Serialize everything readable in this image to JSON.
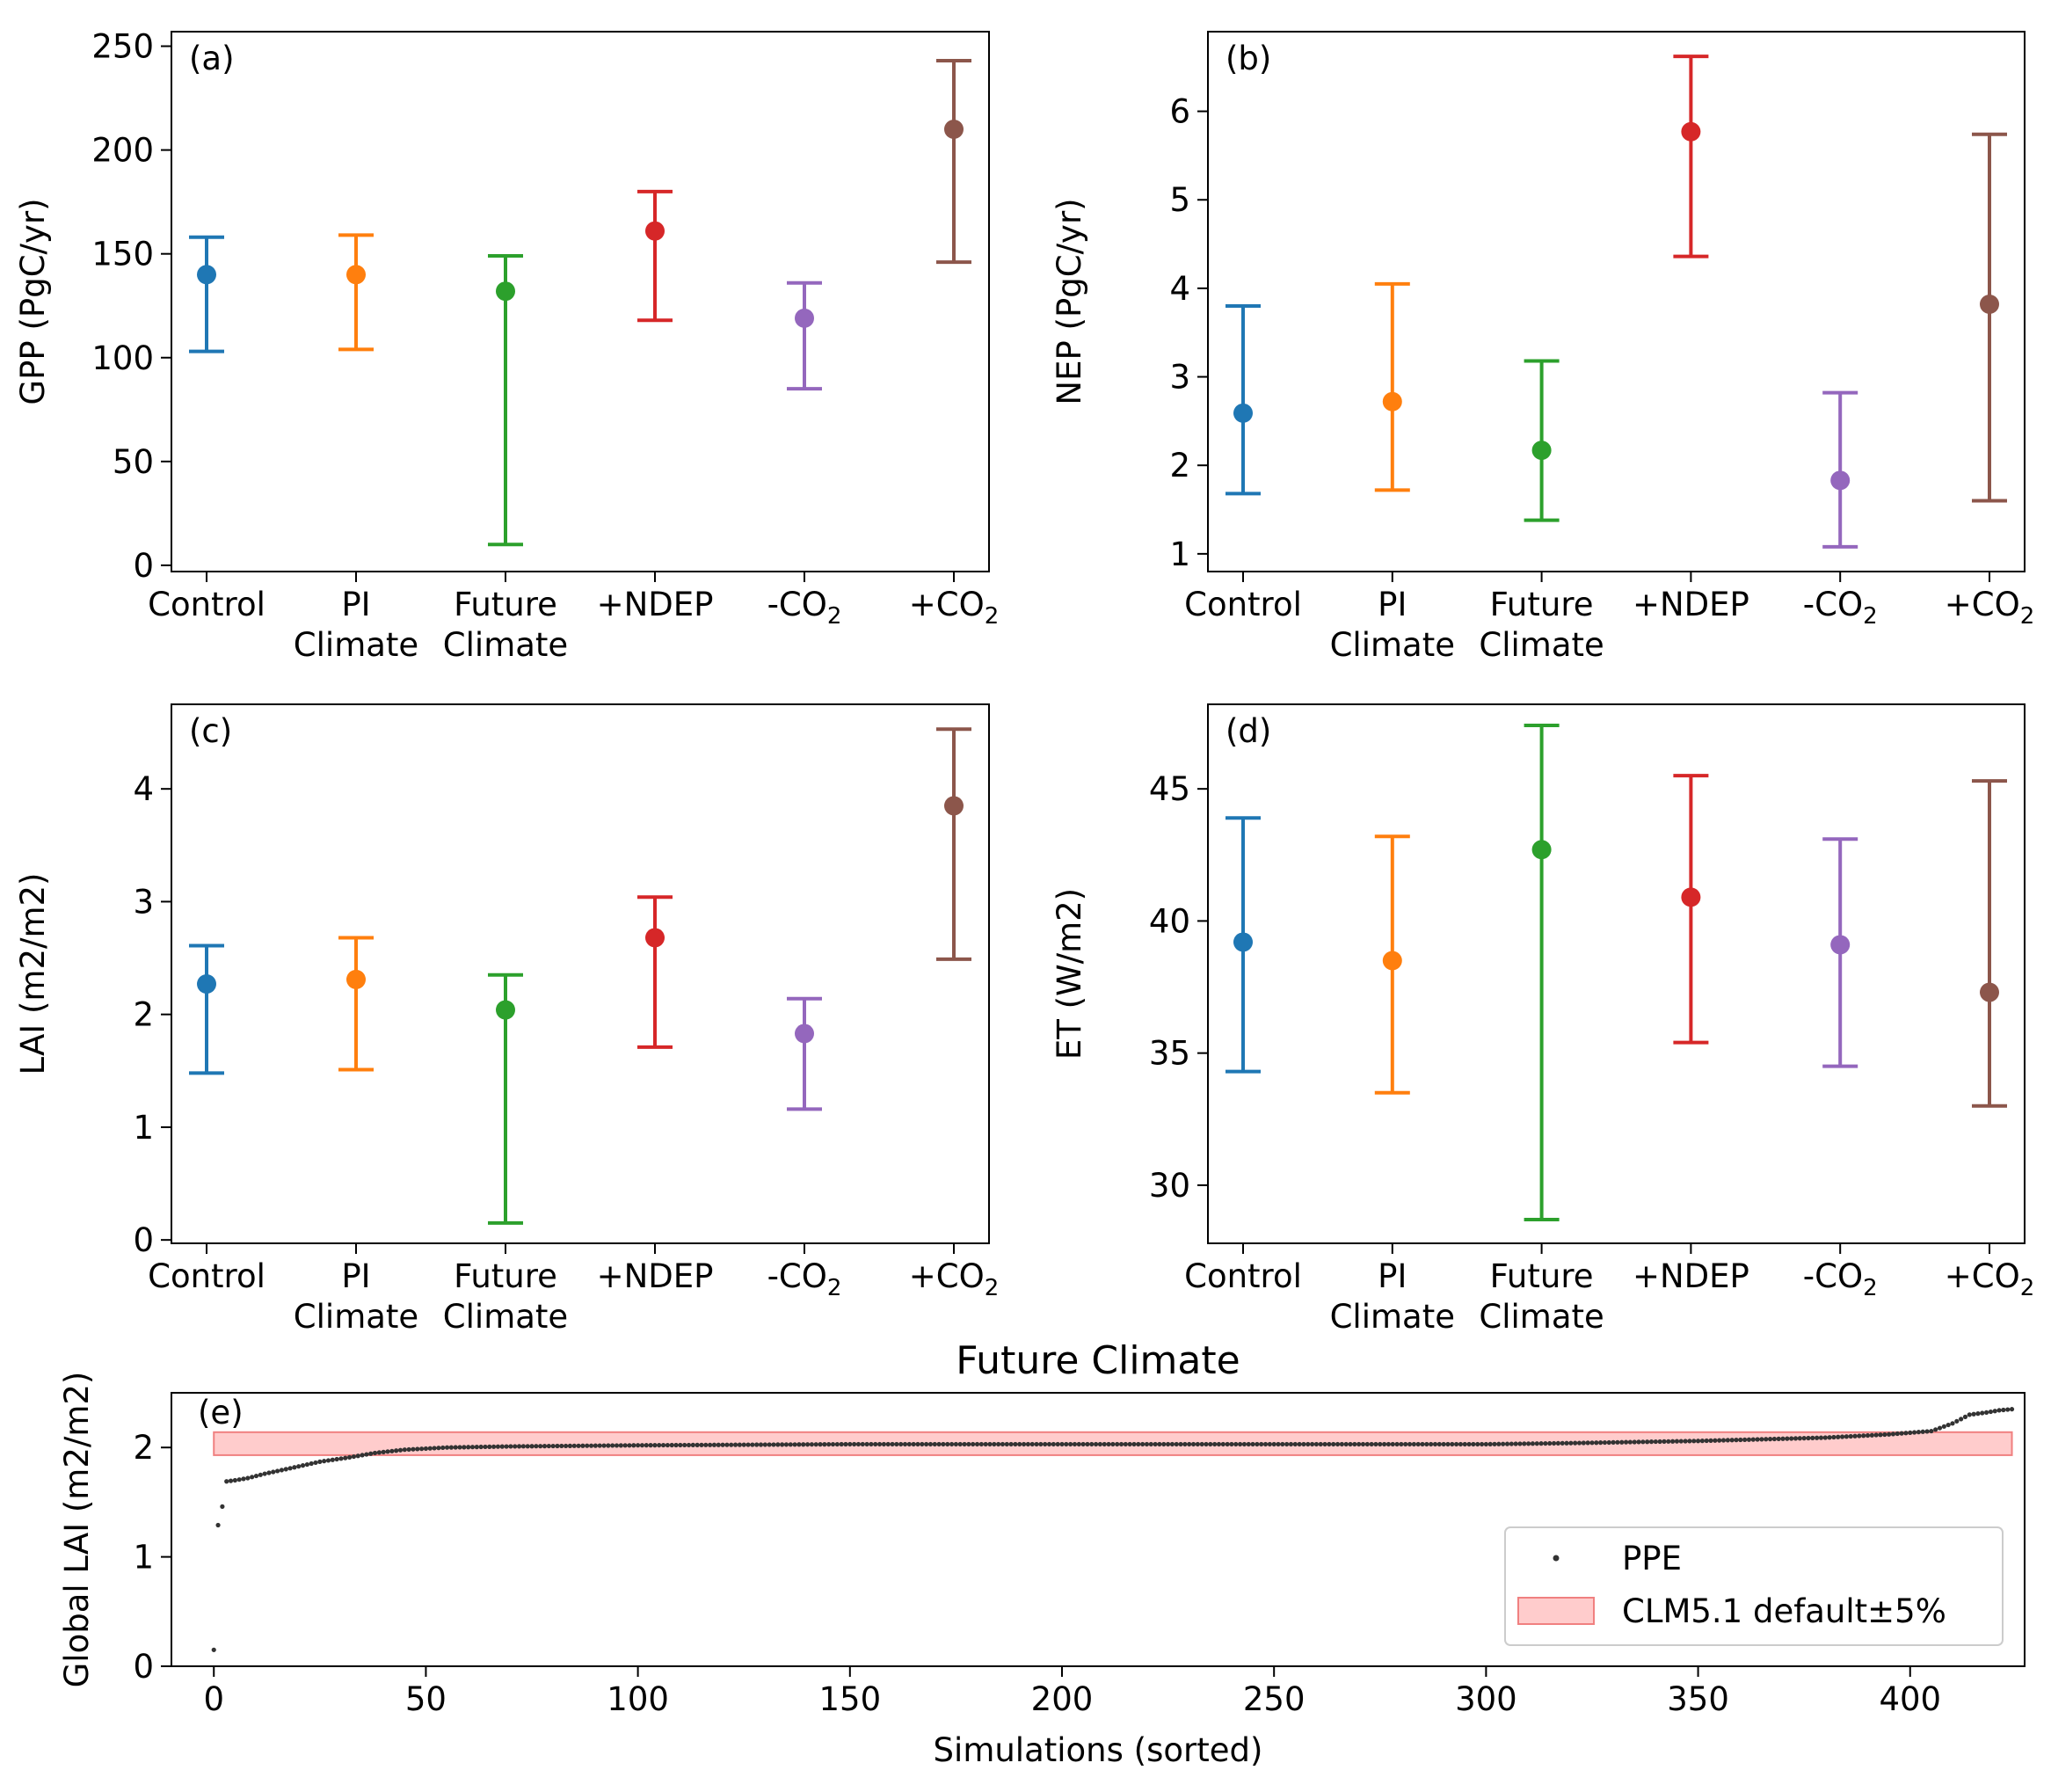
{
  "colors": {
    "Control": "#1f77b4",
    "PI Climate": "#ff7f0e",
    "Future Climate": "#2ca02c",
    "+NDEP": "#d62728",
    "-CO2": "#9467bd",
    "+CO2": "#8c564b",
    "ppe_marker": "#333333",
    "band_fill": "#ffcccc",
    "band_edge": "#f08080"
  },
  "chart_data": [
    {
      "type": "errorbar",
      "panel": "(a)",
      "ylabel": "GPP (PgC/yr)",
      "ylim": [
        -3,
        257
      ],
      "yticks": [
        0,
        50,
        100,
        150,
        200,
        250
      ],
      "categories": [
        {
          "line1": "Control",
          "line2": ""
        },
        {
          "line1": "PI",
          "line2": "Climate"
        },
        {
          "line1": "Future",
          "line2": "Climate"
        },
        {
          "line1": "+NDEP",
          "line2": ""
        },
        {
          "line1": "-CO",
          "sub": "2",
          "line2": ""
        },
        {
          "line1": "+CO",
          "sub": "2",
          "line2": ""
        }
      ],
      "mean": [
        140,
        140,
        132,
        161,
        119,
        210
      ],
      "low": [
        103,
        104,
        10,
        118,
        85,
        146
      ],
      "high": [
        158,
        159,
        149,
        180,
        136,
        243
      ]
    },
    {
      "type": "errorbar",
      "panel": "(b)",
      "ylabel": "NEP (PgC/yr)",
      "ylim": [
        0.8,
        6.9
      ],
      "yticks": [
        1,
        2,
        3,
        4,
        5,
        6
      ],
      "categories": [
        {
          "line1": "Control",
          "line2": ""
        },
        {
          "line1": "PI",
          "line2": "Climate"
        },
        {
          "line1": "Future",
          "line2": "Climate"
        },
        {
          "line1": "+NDEP",
          "line2": ""
        },
        {
          "line1": "-CO",
          "sub": "2",
          "line2": ""
        },
        {
          "line1": "+CO",
          "sub": "2",
          "line2": ""
        }
      ],
      "mean": [
        2.59,
        2.72,
        2.17,
        5.77,
        1.83,
        3.82
      ],
      "low": [
        1.68,
        1.72,
        1.38,
        4.36,
        1.08,
        1.6
      ],
      "high": [
        3.8,
        4.05,
        3.18,
        6.62,
        2.82,
        5.74
      ]
    },
    {
      "type": "errorbar",
      "panel": "(c)",
      "ylabel": "LAI (m2/m2)",
      "ylim": [
        -0.03,
        4.75
      ],
      "yticks": [
        0,
        1,
        2,
        3,
        4
      ],
      "categories": [
        {
          "line1": "Control",
          "line2": ""
        },
        {
          "line1": "PI",
          "line2": "Climate"
        },
        {
          "line1": "Future",
          "line2": "Climate"
        },
        {
          "line1": "+NDEP",
          "line2": ""
        },
        {
          "line1": "-CO",
          "sub": "2",
          "line2": ""
        },
        {
          "line1": "+CO",
          "sub": "2",
          "line2": ""
        }
      ],
      "mean": [
        2.27,
        2.31,
        2.04,
        2.68,
        1.83,
        3.85
      ],
      "low": [
        1.48,
        1.51,
        0.15,
        1.71,
        1.16,
        2.49
      ],
      "high": [
        2.61,
        2.68,
        2.35,
        3.04,
        2.14,
        4.53
      ]
    },
    {
      "type": "errorbar",
      "panel": "(d)",
      "ylabel": "ET (W/m2)",
      "ylim": [
        27.8,
        48.2
      ],
      "yticks": [
        30,
        35,
        40,
        45
      ],
      "categories": [
        {
          "line1": "Control",
          "line2": ""
        },
        {
          "line1": "PI",
          "line2": "Climate"
        },
        {
          "line1": "Future",
          "line2": "Climate"
        },
        {
          "line1": "+NDEP",
          "line2": ""
        },
        {
          "line1": "-CO",
          "sub": "2",
          "line2": ""
        },
        {
          "line1": "+CO",
          "sub": "2",
          "line2": ""
        }
      ],
      "mean": [
        39.2,
        38.5,
        42.7,
        40.9,
        39.1,
        37.3
      ],
      "low": [
        34.3,
        33.5,
        28.7,
        35.4,
        34.5,
        33.0
      ],
      "high": [
        43.9,
        43.2,
        47.4,
        45.5,
        43.1,
        45.3
      ]
    },
    {
      "type": "scatter",
      "panel": "(e)",
      "title": "Future Climate",
      "xlabel": "Simulations (sorted)",
      "ylabel": "Global LAI (m2/m2)",
      "xlim": [
        -10,
        427
      ],
      "ylim": [
        0,
        2.5
      ],
      "xticks": [
        0,
        50,
        100,
        150,
        200,
        250,
        300,
        350,
        400
      ],
      "yticks": [
        0,
        1,
        2
      ],
      "n_points": 425,
      "sorted_profile": [
        [
          0,
          0.15
        ],
        [
          1,
          1.29
        ],
        [
          2,
          1.46
        ],
        [
          3,
          1.69
        ],
        [
          5,
          1.7
        ],
        [
          8,
          1.72
        ],
        [
          12,
          1.76
        ],
        [
          18,
          1.81
        ],
        [
          25,
          1.87
        ],
        [
          32,
          1.91
        ],
        [
          38,
          1.95
        ],
        [
          45,
          1.98
        ],
        [
          55,
          2.0
        ],
        [
          70,
          2.01
        ],
        [
          100,
          2.02
        ],
        [
          150,
          2.03
        ],
        [
          200,
          2.03
        ],
        [
          250,
          2.03
        ],
        [
          300,
          2.03
        ],
        [
          320,
          2.04
        ],
        [
          350,
          2.06
        ],
        [
          380,
          2.09
        ],
        [
          395,
          2.12
        ],
        [
          405,
          2.15
        ],
        [
          410,
          2.22
        ],
        [
          414,
          2.3
        ],
        [
          418,
          2.32
        ],
        [
          421,
          2.34
        ],
        [
          424,
          2.35
        ]
      ],
      "band": {
        "low": 1.93,
        "high": 2.14,
        "x": [
          0,
          424
        ]
      },
      "legend": {
        "position": "lower right",
        "entries": [
          "PPE",
          "CLM5.1 default±5%"
        ]
      }
    }
  ]
}
